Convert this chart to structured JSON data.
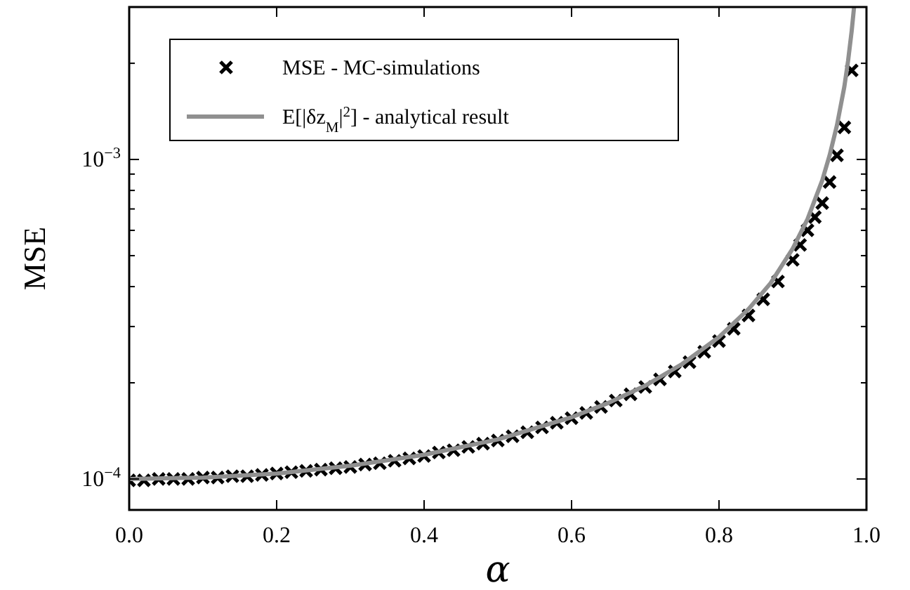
{
  "chart_data": {
    "type": "line",
    "xlabel": "α",
    "ylabel": "MSE",
    "log": "y",
    "grid": false,
    "legend": "top left",
    "xlim": [
      0,
      1
    ],
    "xticks": [
      {
        "value": 0,
        "label": "0.0"
      },
      {
        "value": 0.2,
        "label": "0.2"
      },
      {
        "value": 0.4,
        "label": "0.4"
      },
      {
        "value": 0.6,
        "label": "0.6"
      },
      {
        "value": 0.8,
        "label": "0.8"
      },
      {
        "value": 1,
        "label": "1.0"
      }
    ],
    "ylim": [
      8e-05,
      0.003
    ],
    "yticks": [
      {
        "value": 0.0001,
        "label": "10$^{−4}$"
      },
      {
        "value": 0.0002,
        "label": null
      },
      {
        "value": 0.0003,
        "label": null
      },
      {
        "value": 0.0004,
        "label": null
      },
      {
        "value": 0.0005,
        "label": null
      },
      {
        "value": 0.0006,
        "label": null
      },
      {
        "value": 0.0007,
        "label": null
      },
      {
        "value": 0.0008,
        "label": null
      },
      {
        "value": 0.0009,
        "label": null
      },
      {
        "value": 0.001,
        "label": "10$^{−3}$"
      },
      {
        "value": 0.002,
        "label": null
      }
    ],
    "series": [
      {
        "name": "MSE - MC-simulations",
        "type": "scatter",
        "marker": "cross",
        "color": "#000000",
        "x": [
          0,
          0.02,
          0.04,
          0.06,
          0.08,
          0.1,
          0.12,
          0.14,
          0.16,
          0.18,
          0.2,
          0.22,
          0.24,
          0.26,
          0.28,
          0.3,
          0.32,
          0.34,
          0.36,
          0.38,
          0.4,
          0.42,
          0.44,
          0.46,
          0.48,
          0.5,
          0.52,
          0.54,
          0.56,
          0.58,
          0.6,
          0.62,
          0.64,
          0.66,
          0.68,
          0.7,
          0.72,
          0.74,
          0.76,
          0.78,
          0.8,
          0.82,
          0.84,
          0.86,
          0.88,
          0.9,
          0.91,
          0.92,
          0.93,
          0.94,
          0.95,
          0.96,
          0.97,
          0.98
        ],
        "values": [
          9.9e-05,
          9.9e-05,
          0.0001,
          0.0001,
          0.0001,
          0.000101,
          0.000101,
          0.000102,
          0.000102,
          0.000103,
          0.000104,
          0.000105,
          0.000106,
          0.000107,
          0.000108,
          0.000109,
          0.000111,
          0.000112,
          0.000114,
          0.000116,
          0.000118,
          0.000121,
          0.000123,
          0.000126,
          0.000129,
          0.000132,
          0.000136,
          0.00014,
          0.000145,
          0.00015,
          0.000155,
          0.000161,
          0.000168,
          0.000176,
          0.000184,
          0.000194,
          0.000205,
          0.000217,
          0.000232,
          0.00025,
          0.00027,
          0.000295,
          0.000325,
          0.000365,
          0.000415,
          0.000485,
          0.00054,
          0.0006,
          0.00066,
          0.00073,
          0.00085,
          0.00103,
          0.00126,
          0.0019
        ]
      },
      {
        "name": "E[|δz$_{M}$|$^{2}$] - analytical result",
        "marker": "none",
        "line_style": "solid",
        "color": "#909090",
        "x": [
          0,
          0.1,
          0.2,
          0.3,
          0.4,
          0.5,
          0.6,
          0.65,
          0.7,
          0.75,
          0.8,
          0.84,
          0.87,
          0.9,
          0.92,
          0.94,
          0.95,
          0.96,
          0.97,
          0.975,
          0.98,
          0.983
        ],
        "values": [
          0.0001,
          0.000101,
          0.000104,
          0.00011,
          0.000119,
          0.000133,
          0.000156,
          0.000173,
          0.000196,
          0.000229,
          0.000278,
          0.00034,
          0.00041,
          0.000526,
          0.00065,
          0.00086,
          0.00103,
          0.00128,
          0.00169,
          0.00203,
          0.00253,
          0.00297
        ]
      }
    ]
  }
}
